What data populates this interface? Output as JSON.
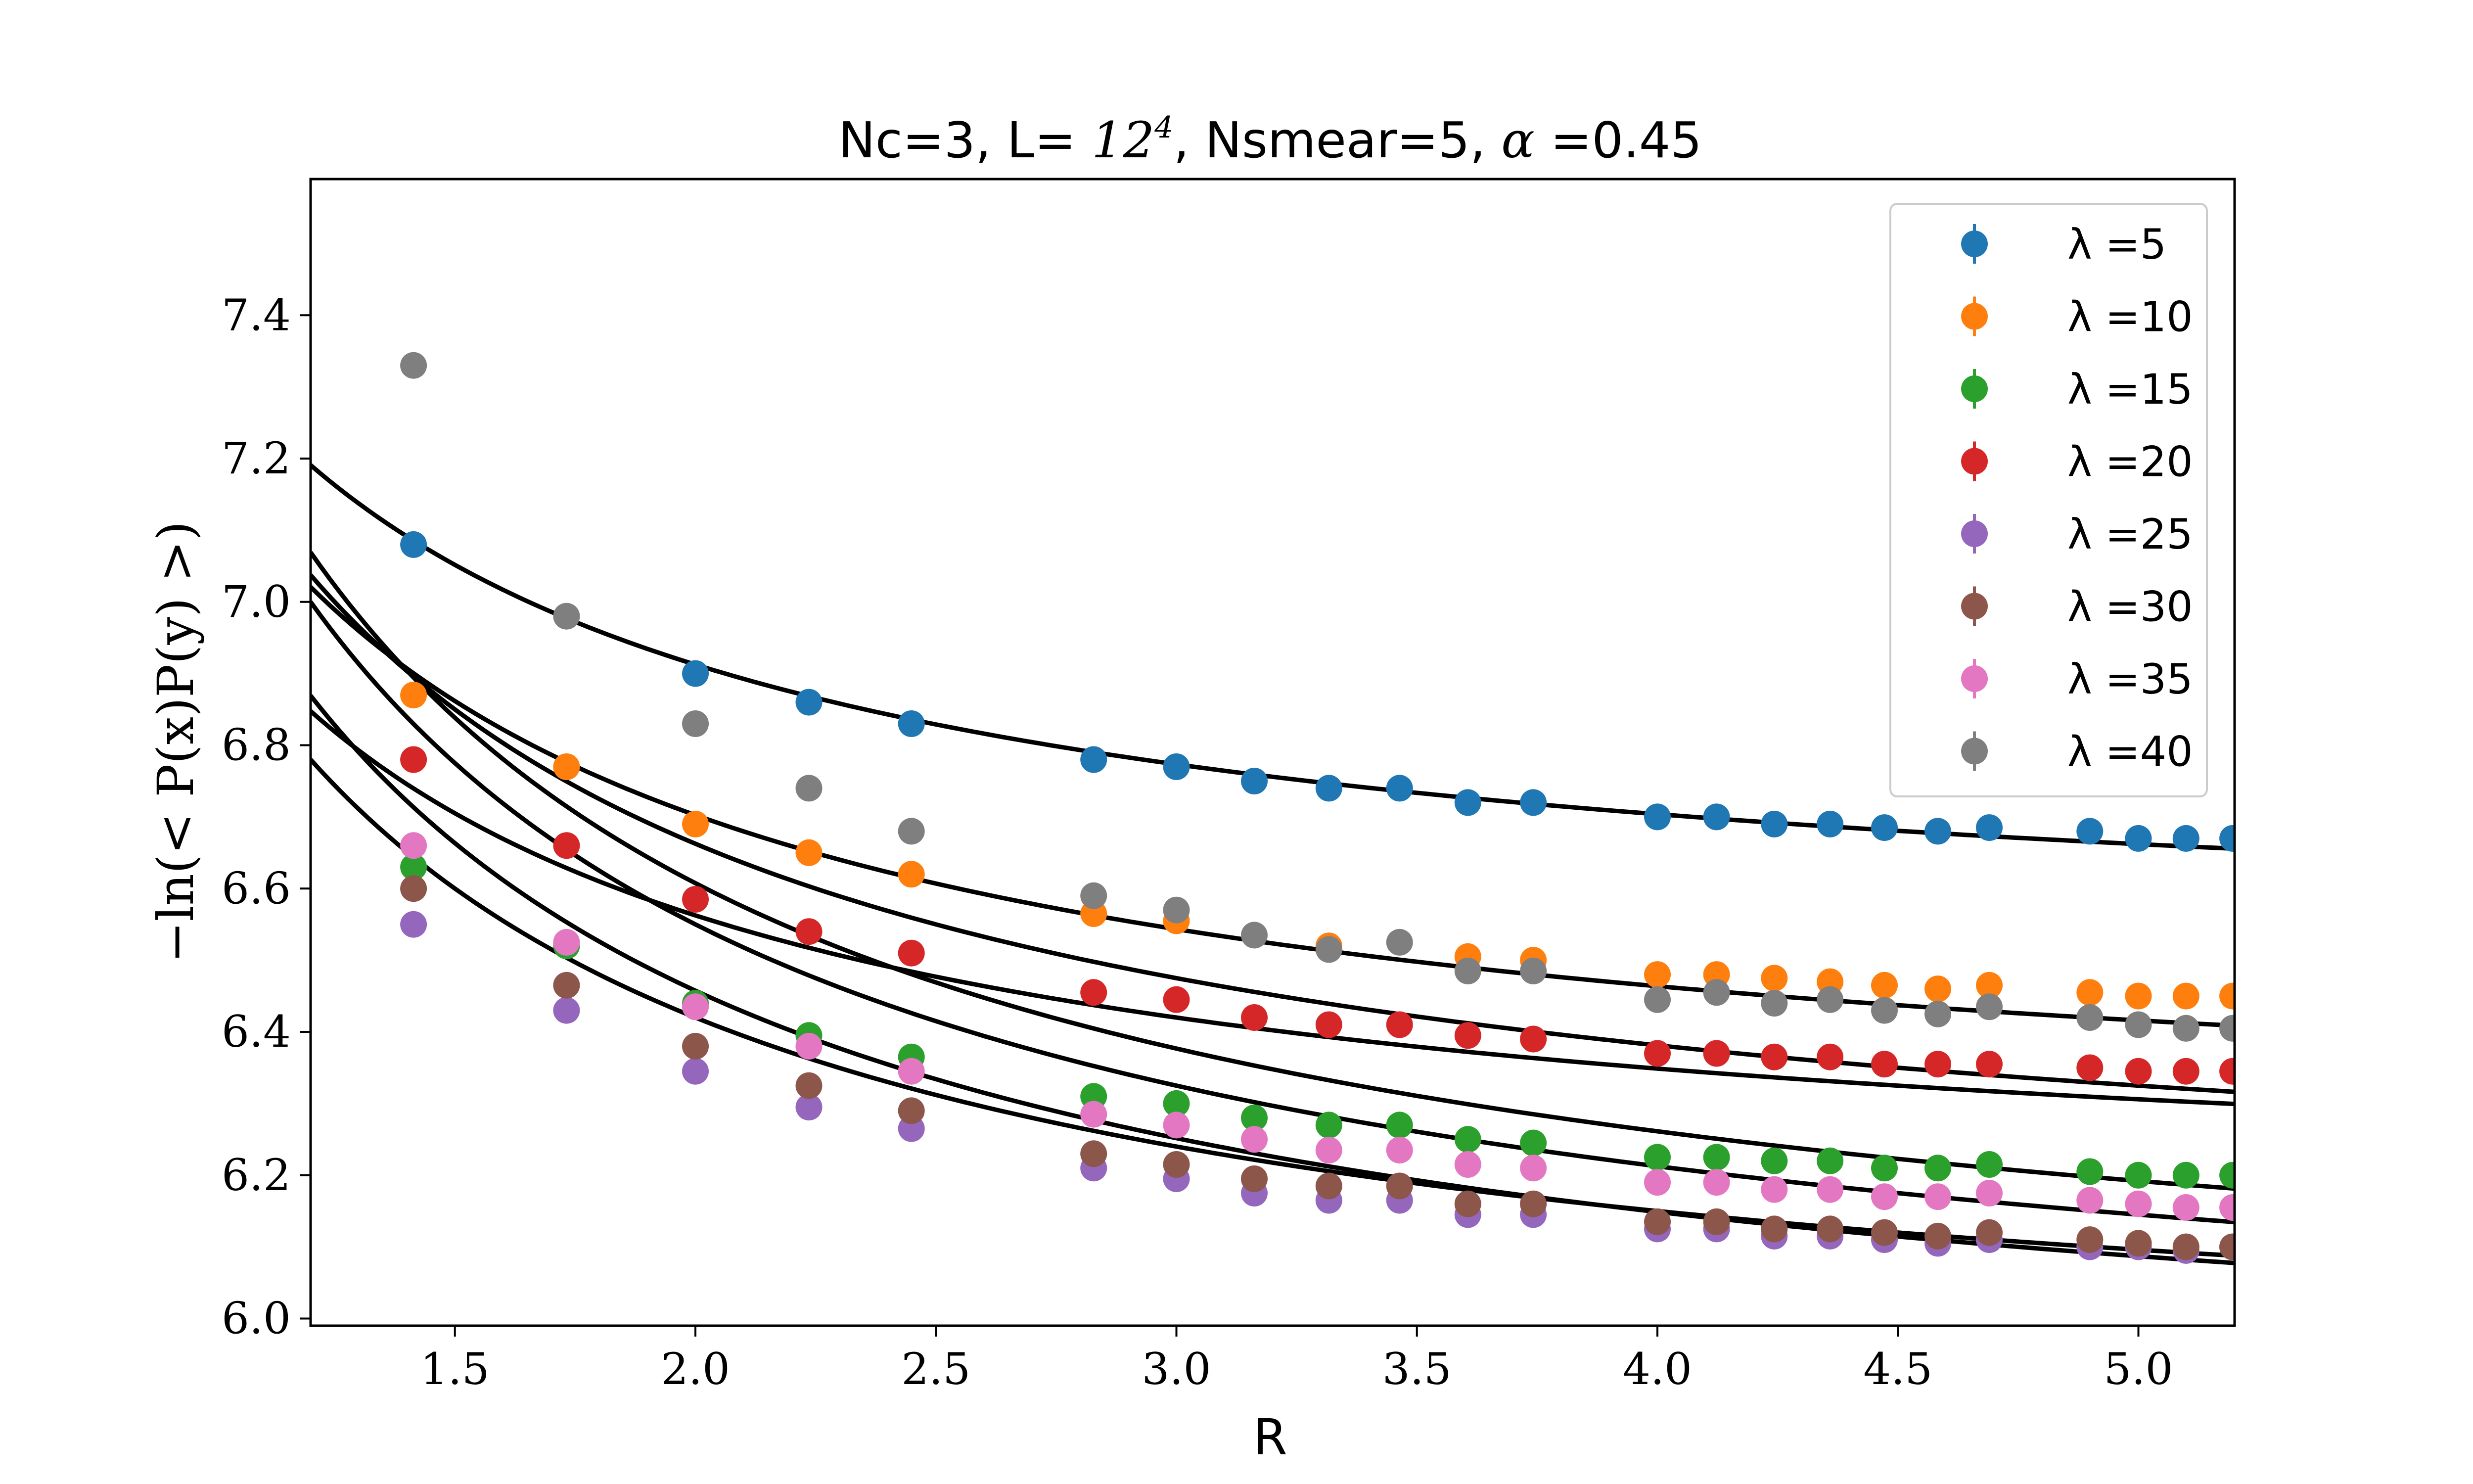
{
  "chart_data": {
    "type": "scatter",
    "title": "Nc=3, L= 12⁴, Nsmear=5, α =0.45",
    "title_parts": {
      "a": "Nc=3, L= ",
      "b": "12",
      "c": "4",
      "d": ", Nsmear=5, ",
      "e": "α",
      "f": " =0.45"
    },
    "xlabel": "R",
    "ylabel": "−ln(< P(x)P(y) >)",
    "xlim": [
      1.2,
      5.2
    ],
    "ylim": [
      5.99,
      7.59
    ],
    "xticks": [
      "1.5",
      "2.0",
      "2.5",
      "3.0",
      "3.5",
      "4.0",
      "4.5",
      "5.0"
    ],
    "yticks": [
      "6.0",
      "6.2",
      "6.4",
      "6.6",
      "6.8",
      "7.0",
      "7.2",
      "7.4"
    ],
    "legend_position": "top-right",
    "x": [
      1.414,
      1.732,
      2.0,
      2.236,
      2.449,
      2.828,
      3.0,
      3.162,
      3.317,
      3.464,
      3.606,
      3.742,
      4.0,
      4.123,
      4.243,
      4.359,
      4.472,
      4.583,
      4.69,
      4.899,
      5.0,
      5.099,
      5.196
    ],
    "series": [
      {
        "name": "λ =5",
        "color": "#1f77b4",
        "fit": {
          "a": 6.495,
          "b": 0.835
        },
        "values": [
          7.08,
          null,
          6.9,
          6.86,
          6.83,
          6.78,
          6.77,
          6.75,
          6.74,
          6.74,
          6.72,
          6.72,
          6.7,
          6.7,
          6.69,
          6.69,
          6.685,
          6.68,
          6.685,
          6.68,
          6.67,
          6.67,
          6.67
        ]
      },
      {
        "name": "λ =10",
        "color": "#ff7f0e",
        "fit": {
          "a": 6.225,
          "b": 0.955
        },
        "values": [
          6.87,
          6.77,
          6.69,
          6.65,
          6.62,
          6.565,
          6.555,
          null,
          6.52,
          null,
          6.505,
          6.5,
          6.48,
          6.48,
          6.475,
          6.47,
          6.465,
          6.46,
          6.465,
          6.455,
          6.45,
          6.45,
          6.45
        ]
      },
      {
        "name": "λ =15",
        "color": "#2ca02c",
        "fit": {
          "a": 5.915,
          "b": 1.385
        },
        "values": [
          6.63,
          6.52,
          6.44,
          6.395,
          6.365,
          6.31,
          6.3,
          6.28,
          6.27,
          6.27,
          6.25,
          6.245,
          6.225,
          6.225,
          6.22,
          6.22,
          6.21,
          6.21,
          6.215,
          6.205,
          6.2,
          6.2,
          6.2
        ]
      },
      {
        "name": "λ =20",
        "color": "#d62728",
        "fit": {
          "a": 6.135,
          "b": 0.855
        },
        "values": [
          6.78,
          6.66,
          6.585,
          6.54,
          6.51,
          6.455,
          6.445,
          6.42,
          6.41,
          6.41,
          6.395,
          6.39,
          6.37,
          6.37,
          6.365,
          6.365,
          6.355,
          6.355,
          6.355,
          6.35,
          6.345,
          6.345,
          6.345
        ]
      },
      {
        "name": "λ =25",
        "color": "#9467bd",
        "fit": {
          "a": 5.88,
          "b": 1.08
        },
        "values": [
          6.55,
          6.43,
          6.345,
          6.295,
          6.265,
          6.21,
          6.195,
          6.175,
          6.165,
          6.165,
          6.145,
          6.145,
          6.125,
          6.125,
          6.115,
          6.115,
          6.11,
          6.105,
          6.11,
          6.1,
          6.1,
          6.095,
          6.1
        ]
      },
      {
        "name": "λ =30",
        "color": "#8c564b",
        "fit": {
          "a": 5.84,
          "b": 1.235
        },
        "values": [
          6.6,
          6.465,
          6.38,
          6.325,
          6.29,
          6.23,
          6.215,
          6.195,
          6.185,
          6.185,
          6.16,
          6.16,
          6.135,
          6.135,
          6.125,
          6.125,
          6.12,
          6.115,
          6.12,
          6.11,
          6.105,
          6.1,
          6.1
        ]
      },
      {
        "name": "λ =35",
        "color": "#e377c2",
        "fit": {
          "a": 5.875,
          "b": 1.35
        },
        "values": [
          6.66,
          6.525,
          6.435,
          6.38,
          6.345,
          6.285,
          6.27,
          6.25,
          6.235,
          6.235,
          6.215,
          6.21,
          6.19,
          6.19,
          6.18,
          6.18,
          6.17,
          6.17,
          6.175,
          6.165,
          6.16,
          6.155,
          6.155
        ]
      },
      {
        "name": "λ =40",
        "color": "#7f7f7f",
        "fit": {
          "a": 6.1,
          "b": 1.125
        },
        "values": [
          7.33,
          6.98,
          6.83,
          6.74,
          6.68,
          6.59,
          6.57,
          6.535,
          6.515,
          6.525,
          6.485,
          6.485,
          6.445,
          6.455,
          6.44,
          6.445,
          6.43,
          6.425,
          6.435,
          6.42,
          6.41,
          6.405,
          6.405
        ]
      }
    ]
  }
}
